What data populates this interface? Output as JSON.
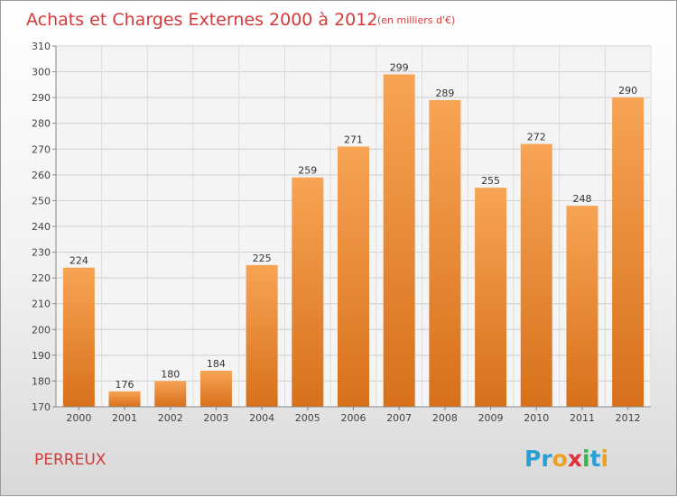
{
  "chart_data": {
    "type": "bar",
    "title": "Achats et Charges Externes 2000 à 2012",
    "subtitle": "(en milliers d'€)",
    "categories": [
      "2000",
      "2001",
      "2002",
      "2003",
      "2004",
      "2005",
      "2006",
      "2007",
      "2008",
      "2009",
      "2010",
      "2011",
      "2012"
    ],
    "values": [
      224,
      176,
      180,
      184,
      225,
      259,
      271,
      299,
      289,
      255,
      272,
      248,
      290
    ],
    "ylim": [
      170,
      310
    ],
    "yticks": [
      170,
      180,
      190,
      200,
      210,
      220,
      230,
      240,
      250,
      260,
      270,
      280,
      290,
      300,
      310
    ],
    "grid": true,
    "bar_color": "#f08a2a"
  },
  "place_name": "PERREUX",
  "logo": {
    "text": "Proxiti",
    "letters": [
      "P",
      "r",
      "o",
      "x",
      "i",
      "t",
      "i"
    ],
    "colors": [
      "#2a9fd6",
      "#2a9fd6",
      "#f0a020",
      "#e0303a",
      "#3ab54a",
      "#2a9fd6",
      "#f0a020"
    ]
  }
}
